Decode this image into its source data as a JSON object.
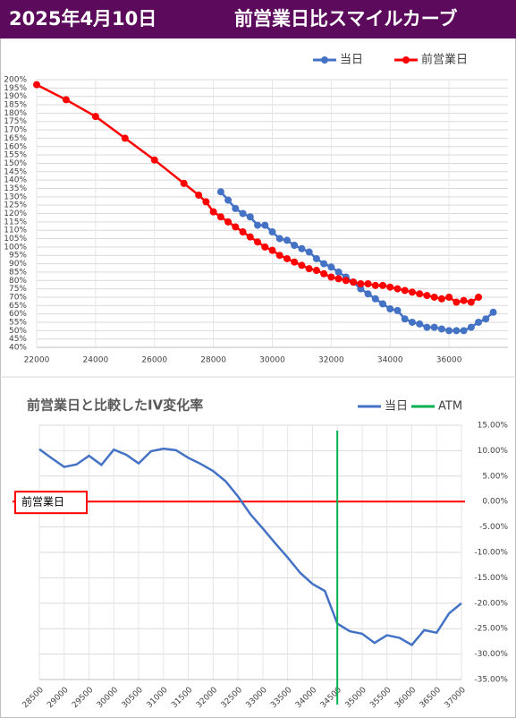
{
  "header": {
    "date": "2025年4月10日",
    "title": "前営業日比スマイルカーブ"
  },
  "chart_data": [
    {
      "type": "line",
      "markers": true,
      "grid": true,
      "xlim": [
        22000,
        38000
      ],
      "xticks": [
        22000,
        24000,
        26000,
        28000,
        30000,
        32000,
        34000,
        36000
      ],
      "ylim": [
        40,
        200
      ],
      "yticks": [
        {
          "value": 40,
          "label": "40%"
        },
        {
          "value": 45,
          "label": "45%"
        },
        {
          "value": 50,
          "label": "50%"
        },
        {
          "value": 55,
          "label": "55%"
        },
        {
          "value": 60,
          "label": "60%"
        },
        {
          "value": 65,
          "label": "65%"
        },
        {
          "value": 70,
          "label": "70%"
        },
        {
          "value": 75,
          "label": "75%"
        },
        {
          "value": 80,
          "label": "80%"
        },
        {
          "value": 85,
          "label": "85%"
        },
        {
          "value": 90,
          "label": "90%"
        },
        {
          "value": 95,
          "label": "95%"
        },
        {
          "value": 100,
          "label": "100%"
        },
        {
          "value": 105,
          "label": "105%"
        },
        {
          "value": 110,
          "label": "110%"
        },
        {
          "value": 115,
          "label": "115%"
        },
        {
          "value": 120,
          "label": "120%"
        },
        {
          "value": 125,
          "label": "125%"
        },
        {
          "value": 130,
          "label": "130%"
        },
        {
          "value": 135,
          "label": "135%"
        },
        {
          "value": 140,
          "label": "140%"
        },
        {
          "value": 145,
          "label": "145%"
        },
        {
          "value": 150,
          "label": "150%"
        },
        {
          "value": 155,
          "label": "155%"
        },
        {
          "value": 160,
          "label": "160%"
        },
        {
          "value": 165,
          "label": "165%"
        },
        {
          "value": 170,
          "label": "170%"
        },
        {
          "value": 175,
          "label": "175%"
        },
        {
          "value": 180,
          "label": "180%"
        },
        {
          "value": 185,
          "label": "185%"
        },
        {
          "value": 190,
          "label": "190%"
        },
        {
          "value": 195,
          "label": "195%"
        },
        {
          "value": 200,
          "label": "200%"
        }
      ],
      "series": [
        {
          "name": "当日",
          "color": "#4472c4",
          "x": [
            28250,
            28500,
            28750,
            29000,
            29250,
            29500,
            29750,
            30000,
            30250,
            30500,
            30750,
            31000,
            31250,
            31500,
            31750,
            32000,
            32250,
            32500,
            32750,
            33000,
            33250,
            33500,
            33750,
            34000,
            34250,
            34500,
            34750,
            35000,
            35250,
            35500,
            35750,
            36000,
            36250,
            36500,
            36750,
            37000,
            37250,
            37500
          ],
          "values": [
            133,
            128,
            123,
            120,
            118,
            113,
            113,
            109,
            105,
            104,
            101,
            99,
            97,
            93,
            90,
            88,
            85,
            82,
            79,
            75,
            72,
            69,
            66,
            63,
            62,
            57,
            55,
            54,
            52,
            52,
            51,
            50,
            50,
            50,
            52,
            55,
            57,
            61
          ]
        },
        {
          "name": "前営業日",
          "color": "#ff0000",
          "x": [
            22000,
            23000,
            24000,
            25000,
            26000,
            27000,
            27500,
            27750,
            28000,
            28250,
            28500,
            28750,
            29000,
            29250,
            29500,
            29750,
            30000,
            30250,
            30500,
            30750,
            31000,
            31250,
            31500,
            31750,
            32000,
            32250,
            32500,
            32750,
            33000,
            33250,
            33500,
            33750,
            34000,
            34250,
            34500,
            34750,
            35000,
            35250,
            35500,
            35750,
            36000,
            36250,
            36500,
            36750,
            37000
          ],
          "values": [
            197,
            188,
            178,
            165,
            152,
            138,
            131,
            127,
            121,
            118,
            115,
            112,
            109,
            106,
            103,
            100,
            98,
            95,
            93,
            91,
            89,
            87,
            86,
            84,
            82,
            81,
            80,
            79,
            78,
            78,
            77,
            77,
            76,
            75,
            74,
            73,
            72,
            71,
            70,
            69,
            70,
            67,
            68,
            67,
            70
          ]
        }
      ]
    },
    {
      "type": "line",
      "markers": false,
      "grid": true,
      "title": "前営業日と比較したIV変化率",
      "xlim": [
        28500,
        37000
      ],
      "xticks": [
        28500,
        29000,
        29500,
        30000,
        30500,
        31000,
        31500,
        32000,
        32500,
        33000,
        33500,
        34000,
        34500,
        35000,
        35500,
        36000,
        36500,
        37000
      ],
      "ylim": [
        -35,
        15
      ],
      "yticks": [
        {
          "value": 15,
          "label": "15.00%"
        },
        {
          "value": 10,
          "label": "10.00%"
        },
        {
          "value": 5,
          "label": "5.00%"
        },
        {
          "value": 0,
          "label": "0.00%"
        },
        {
          "value": -5,
          "label": "-5.00%"
        },
        {
          "value": -10,
          "label": "-10.00%"
        },
        {
          "value": -15,
          "label": "-15.00%"
        },
        {
          "value": -20,
          "label": "-20.00%"
        },
        {
          "value": -25,
          "label": "-25.00%"
        },
        {
          "value": -30,
          "label": "-30.00%"
        },
        {
          "value": -35,
          "label": "-35.00%"
        }
      ],
      "series": [
        {
          "name": "当日",
          "color": "#4472c4",
          "x": [
            28500,
            28750,
            29000,
            29250,
            29500,
            29750,
            30000,
            30250,
            30500,
            30750,
            31000,
            31250,
            31500,
            31750,
            32000,
            32250,
            32500,
            32750,
            33000,
            33250,
            33500,
            33750,
            34000,
            34250,
            34500,
            34750,
            35000,
            35250,
            35500,
            35750,
            36000,
            36250,
            36500,
            36750,
            37000
          ],
          "values": [
            10.3,
            8.5,
            6.8,
            7.3,
            9.0,
            7.2,
            10.2,
            9.2,
            7.5,
            9.9,
            10.4,
            10.1,
            8.6,
            7.4,
            6.0,
            4.0,
            1.0,
            -2.5,
            -5.3,
            -8.2,
            -11.0,
            -14.0,
            -16.2,
            -17.6,
            -24.0,
            -25.5,
            -26.0,
            -27.8,
            -26.3,
            -26.8,
            -28.2,
            -25.3,
            -25.8,
            -22.0,
            -20.0
          ]
        }
      ],
      "atm": {
        "name": "ATM",
        "x": 34500,
        "color": "#00b050"
      },
      "reference_line": {
        "label": "前営業日",
        "y": 0,
        "color": "#ff0000"
      }
    }
  ]
}
